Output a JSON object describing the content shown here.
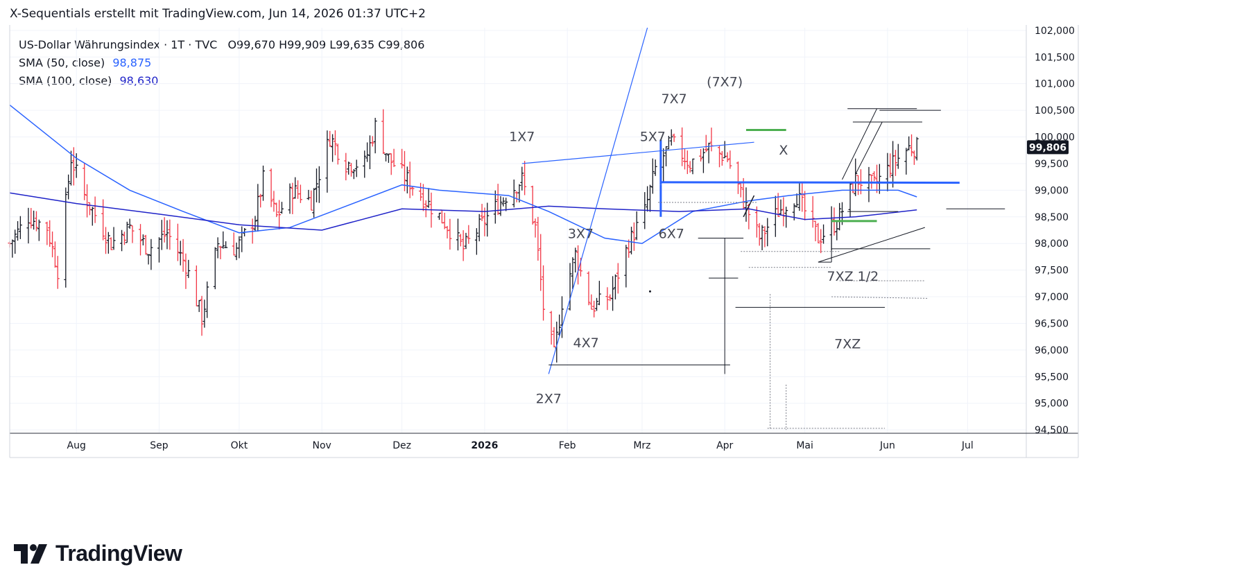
{
  "header": {
    "title": "X-Sequentials erstellt mit TradingView.com, Jun 14, 2026 01:37 UTC+2"
  },
  "legend": {
    "symbol": "US-Dollar Währungsindex · 1T · TVC",
    "ohlc": {
      "open_key": "O",
      "open": "99,670",
      "high_key": "H",
      "high": "99,909",
      "low_key": "L",
      "low": "99,635",
      "close_key": "C",
      "close": "99,806"
    },
    "sma50": {
      "label": "SMA (50, close)",
      "value": "98,875",
      "color": "#2962ff"
    },
    "sma100": {
      "label": "SMA (100, close)",
      "value": "98,630",
      "color": "#1e22c8"
    }
  },
  "price_badge": "99,806",
  "brand": {
    "name": "TradingView",
    "logo_icon": "tradingview-logo-icon"
  },
  "chart_data": {
    "type": "ohlc",
    "ylim": [
      94.45,
      102.05
    ],
    "y_ticks": [
      {
        "value": 94.5,
        "label": "94,500"
      },
      {
        "value": 95.0,
        "label": "95,000"
      },
      {
        "value": 95.5,
        "label": "95,500"
      },
      {
        "value": 96.0,
        "label": "96,000"
      },
      {
        "value": 96.5,
        "label": "96,500"
      },
      {
        "value": 97.0,
        "label": "97,000"
      },
      {
        "value": 97.5,
        "label": "97,500"
      },
      {
        "value": 98.0,
        "label": "98,000"
      },
      {
        "value": 98.5,
        "label": "98,500"
      },
      {
        "value": 99.0,
        "label": "99,000"
      },
      {
        "value": 99.5,
        "label": "99,500"
      },
      {
        "value": 100.0,
        "label": "100,000"
      },
      {
        "value": 100.5,
        "label": "100,500"
      },
      {
        "value": 101.0,
        "label": "101,000"
      },
      {
        "value": 101.5,
        "label": "101,500"
      },
      {
        "value": 102.0,
        "label": "102,000"
      }
    ],
    "x_ticks": [
      {
        "date": "2025-08-01",
        "label": "Aug"
      },
      {
        "date": "2025-09-01",
        "label": "Sep"
      },
      {
        "date": "2025-10-01",
        "label": "Okt"
      },
      {
        "date": "2025-11-01",
        "label": "Nov"
      },
      {
        "date": "2025-12-01",
        "label": "Dez"
      },
      {
        "date": "2026-01-01",
        "label": "2026"
      },
      {
        "date": "2026-02-01",
        "label": "Feb"
      },
      {
        "date": "2026-03-01",
        "label": "Mrz"
      },
      {
        "date": "2026-04-01",
        "label": "Apr"
      },
      {
        "date": "2026-05-01",
        "label": "Mai"
      },
      {
        "date": "2026-06-01",
        "label": "Jun"
      },
      {
        "date": "2026-07-01",
        "label": "Jul"
      }
    ],
    "xlim": [
      "2025-07-07",
      "2026-07-23"
    ],
    "path_points": [
      [
        "2025-07-07",
        98.0
      ],
      [
        "2025-07-14",
        98.5
      ],
      [
        "2025-07-21",
        98.3
      ],
      [
        "2025-07-25",
        97.5
      ],
      [
        "2025-07-30",
        99.6
      ],
      [
        "2025-08-04",
        98.9
      ],
      [
        "2025-08-14",
        98.0
      ],
      [
        "2025-08-21",
        98.3
      ],
      [
        "2025-08-28",
        97.9
      ],
      [
        "2025-09-04",
        98.2
      ],
      [
        "2025-09-11",
        97.6
      ],
      [
        "2025-09-17",
        96.6
      ],
      [
        "2025-09-23",
        98.0
      ],
      [
        "2025-09-30",
        97.9
      ],
      [
        "2025-10-07",
        98.5
      ],
      [
        "2025-10-10",
        99.2
      ],
      [
        "2025-10-15",
        98.5
      ],
      [
        "2025-10-21",
        99.0
      ],
      [
        "2025-10-28",
        98.8
      ],
      [
        "2025-11-04",
        100.0
      ],
      [
        "2025-11-10",
        99.5
      ],
      [
        "2025-11-17",
        99.5
      ],
      [
        "2025-11-21",
        100.2
      ],
      [
        "2025-11-26",
        99.6
      ],
      [
        "2025-12-03",
        99.2
      ],
      [
        "2025-12-10",
        98.8
      ],
      [
        "2025-12-17",
        98.4
      ],
      [
        "2025-12-24",
        97.9
      ],
      [
        "2026-01-02",
        98.5
      ],
      [
        "2026-01-09",
        98.9
      ],
      [
        "2026-01-15",
        99.2
      ],
      [
        "2026-01-20",
        98.3
      ],
      [
        "2026-01-23",
        96.8
      ],
      [
        "2026-01-27",
        95.9
      ],
      [
        "2026-01-30",
        96.9
      ],
      [
        "2026-02-04",
        97.8
      ],
      [
        "2026-02-10",
        96.8
      ],
      [
        "2026-02-17",
        97.0
      ],
      [
        "2026-02-24",
        98.0
      ],
      [
        "2026-03-02",
        98.6
      ],
      [
        "2026-03-06",
        99.4
      ],
      [
        "2026-03-12",
        99.9
      ],
      [
        "2026-03-19",
        99.5
      ],
      [
        "2026-03-26",
        99.8
      ],
      [
        "2026-04-02",
        99.6
      ],
      [
        "2026-04-08",
        98.8
      ],
      [
        "2026-04-14",
        98.1
      ],
      [
        "2026-04-21",
        98.6
      ],
      [
        "2026-04-28",
        98.9
      ],
      [
        "2026-05-06",
        98.1
      ],
      [
        "2026-05-13",
        98.4
      ],
      [
        "2026-05-20",
        99.2
      ],
      [
        "2026-05-27",
        99.1
      ],
      [
        "2026-06-03",
        99.5
      ],
      [
        "2026-06-09",
        99.8
      ],
      [
        "2026-06-12",
        99.8
      ]
    ],
    "sma50_points": [
      [
        "2025-07-07",
        100.6
      ],
      [
        "2025-08-01",
        99.6
      ],
      [
        "2025-08-21",
        99.0
      ],
      [
        "2025-09-10",
        98.6
      ],
      [
        "2025-10-01",
        98.2
      ],
      [
        "2025-10-20",
        98.3
      ],
      [
        "2025-11-10",
        98.7
      ],
      [
        "2025-12-01",
        99.1
      ],
      [
        "2025-12-15",
        99.0
      ],
      [
        "2026-01-10",
        98.9
      ],
      [
        "2026-01-25",
        98.6
      ],
      [
        "2026-02-15",
        98.1
      ],
      [
        "2026-03-01",
        98.0
      ],
      [
        "2026-03-20",
        98.6
      ],
      [
        "2026-04-10",
        98.8
      ],
      [
        "2026-04-25",
        98.9
      ],
      [
        "2026-05-15",
        99.0
      ],
      [
        "2026-06-05",
        99.0
      ],
      [
        "2026-06-12",
        98.875
      ]
    ],
    "sma100_points": [
      [
        "2025-07-07",
        98.95
      ],
      [
        "2025-08-01",
        98.75
      ],
      [
        "2025-09-01",
        98.55
      ],
      [
        "2025-10-01",
        98.35
      ],
      [
        "2025-11-01",
        98.25
      ],
      [
        "2025-12-01",
        98.65
      ],
      [
        "2026-01-01",
        98.6
      ],
      [
        "2026-01-25",
        98.7
      ],
      [
        "2026-02-15",
        98.65
      ],
      [
        "2026-03-15",
        98.6
      ],
      [
        "2026-04-10",
        98.65
      ],
      [
        "2026-05-01",
        98.45
      ],
      [
        "2026-05-20",
        98.5
      ],
      [
        "2026-06-12",
        98.63
      ]
    ],
    "annotations": [
      {
        "date": "2026-01-15",
        "price": 99.92,
        "label": "1X7"
      },
      {
        "date": "2026-01-25",
        "price": 95.0,
        "label": "2X7"
      },
      {
        "date": "2026-02-06",
        "price": 98.1,
        "label": "3X7"
      },
      {
        "date": "2026-02-08",
        "price": 96.05,
        "label": "4X7"
      },
      {
        "date": "2026-03-05",
        "price": 99.92,
        "label": "5X7"
      },
      {
        "date": "2026-03-12",
        "price": 98.1,
        "label": "6X7"
      },
      {
        "date": "2026-03-13",
        "price": 100.63,
        "label": "7X7"
      },
      {
        "date": "2026-04-01",
        "price": 100.95,
        "label": "(7X7)"
      },
      {
        "date": "2026-04-23",
        "price": 99.67,
        "label": "X"
      },
      {
        "date": "2026-05-19",
        "price": 97.3,
        "label": "7XZ  1/2"
      },
      {
        "date": "2026-05-17",
        "price": 96.03,
        "label": "7XZ"
      }
    ],
    "lines": [
      {
        "from": [
          "2026-01-25",
          95.55
        ],
        "to": [
          "2026-03-03",
          102.05
        ],
        "color": "#2962ff",
        "width": 1.2
      },
      {
        "from": [
          "2026-01-15",
          99.5
        ],
        "to": [
          "2026-04-12",
          99.9
        ],
        "color": "#2962ff",
        "width": 1.2
      },
      {
        "from": [
          "2026-03-08",
          99.15
        ],
        "to": [
          "2026-06-28",
          99.14
        ],
        "color": "#2962ff",
        "width": 3
      },
      {
        "from": [
          "2026-03-08",
          99.1
        ],
        "to": [
          "2026-03-08",
          98.5
        ],
        "color": "#2962ff",
        "width": 3
      },
      {
        "from": [
          "2026-03-08",
          99.95
        ],
        "to": [
          "2026-03-08",
          99.1
        ],
        "color": "#2962ff",
        "width": 3
      },
      {
        "from": [
          "2026-04-09",
          100.13
        ],
        "to": [
          "2026-04-24",
          100.13
        ],
        "color": "#4caf50",
        "width": 3
      },
      {
        "from": [
          "2026-05-11",
          98.42
        ],
        "to": [
          "2026-05-28",
          98.42
        ],
        "color": "#4caf50",
        "width": 3
      },
      {
        "from": [
          "2026-01-25",
          95.72
        ],
        "to": [
          "2026-04-03",
          95.72
        ],
        "color": "#131722",
        "width": 1
      },
      {
        "from": [
          "2026-04-01",
          98.1
        ],
        "to": [
          "2026-04-01",
          95.55
        ],
        "color": "#131722",
        "width": 1
      },
      {
        "from": [
          "2026-03-26",
          97.35
        ],
        "to": [
          "2026-04-06",
          97.35
        ],
        "color": "#131722",
        "width": 1
      },
      {
        "from": [
          "2026-03-22",
          98.1
        ],
        "to": [
          "2026-04-08",
          98.1
        ],
        "color": "#131722",
        "width": 1
      },
      {
        "from": [
          "2026-04-05",
          96.8
        ],
        "to": [
          "2026-05-31",
          96.8
        ],
        "color": "#131722",
        "width": 1
      },
      {
        "from": [
          "2026-05-06",
          97.65
        ],
        "to": [
          "2026-06-15",
          98.3
        ],
        "color": "#131722",
        "width": 1
      },
      {
        "from": [
          "2026-05-06",
          97.65
        ],
        "to": [
          "2026-05-11",
          97.65
        ],
        "color": "#131722",
        "width": 1
      },
      {
        "from": [
          "2026-05-11",
          97.65
        ],
        "to": [
          "2026-05-11",
          97.9
        ],
        "color": "#131722",
        "width": 1
      },
      {
        "from": [
          "2026-05-11",
          97.9
        ],
        "to": [
          "2026-06-17",
          97.9
        ],
        "color": "#131722",
        "width": 1
      },
      {
        "from": [
          "2026-05-17",
          98.6
        ],
        "to": [
          "2026-06-05",
          98.6
        ],
        "color": "#131722",
        "width": 1
      },
      {
        "from": [
          "2026-06-23",
          98.65
        ],
        "to": [
          "2026-07-15",
          98.65
        ],
        "color": "#131722",
        "width": 1
      },
      {
        "from": [
          "2026-05-17",
          100.53
        ],
        "to": [
          "2026-06-12",
          100.53
        ],
        "color": "#131722",
        "width": 1
      },
      {
        "from": [
          "2026-05-29",
          100.5
        ],
        "to": [
          "2026-06-21",
          100.5
        ],
        "color": "#131722",
        "width": 1
      },
      {
        "from": [
          "2026-05-19",
          100.28
        ],
        "to": [
          "2026-06-14",
          100.28
        ],
        "color": "#131722",
        "width": 1
      },
      {
        "from": [
          "2026-05-15",
          99.2
        ],
        "to": [
          "2026-05-28",
          100.53
        ],
        "color": "#131722",
        "width": 1
      },
      {
        "from": [
          "2026-05-20",
          99.3
        ],
        "to": [
          "2026-05-30",
          100.28
        ],
        "color": "#131722",
        "width": 1
      },
      {
        "from": [
          "2026-04-08",
          98.5
        ],
        "to": [
          "2026-04-12",
          98.9
        ],
        "color": "#131722",
        "width": 1.5
      }
    ],
    "dotted_lines": [
      {
        "from": [
          "2026-03-07",
          98.77
        ],
        "to": [
          "2026-04-13",
          98.77
        ]
      },
      {
        "from": [
          "2026-04-10",
          97.55
        ],
        "to": [
          "2026-05-11",
          97.55
        ]
      },
      {
        "from": [
          "2026-04-07",
          97.85
        ],
        "to": [
          "2026-05-14",
          97.85
        ]
      },
      {
        "from": [
          "2026-05-14",
          97.3
        ],
        "to": [
          "2026-06-15",
          97.3
        ]
      },
      {
        "from": [
          "2026-05-11",
          97.0
        ],
        "to": [
          "2026-06-16",
          96.97
        ]
      },
      {
        "from": [
          "2026-04-18",
          97.05
        ],
        "to": [
          "2026-04-18",
          94.5
        ]
      },
      {
        "from": [
          "2026-04-24",
          95.35
        ],
        "to": [
          "2026-04-24",
          94.5
        ]
      },
      {
        "from": [
          "2026-04-17",
          94.53
        ],
        "to": [
          "2026-05-31",
          94.53
        ]
      }
    ]
  }
}
